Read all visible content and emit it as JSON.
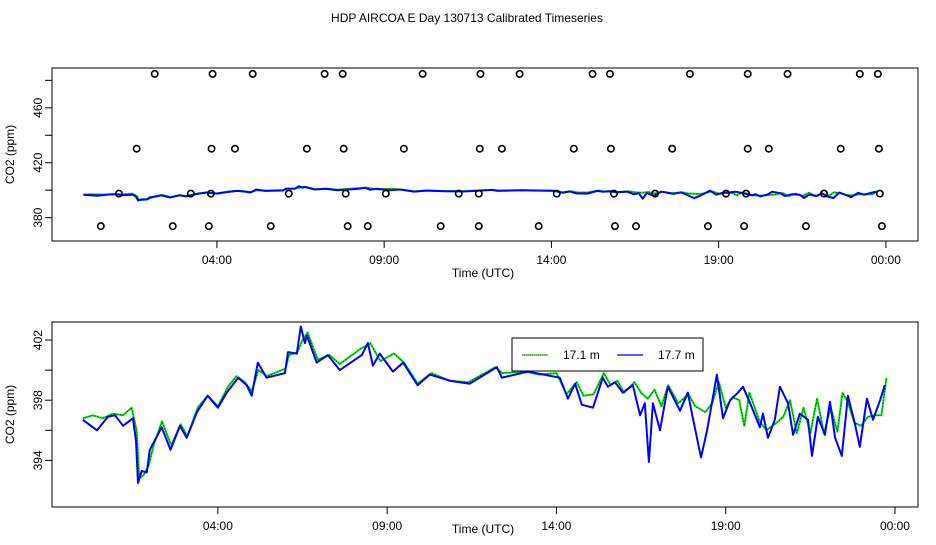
{
  "title": "HDP AIRCOA E  Day 130713  Calibrated Timeseries",
  "colors": {
    "green": "#00e000",
    "blue": "#0000ff",
    "axis": "#000000"
  },
  "chart_data": [
    {
      "type": "line",
      "panel": "top",
      "xlabel": "Time (UTC)",
      "ylabel": "CO2 (ppm)",
      "xlim": [
        -0.93,
        24.96
      ],
      "ylim": [
        363,
        489
      ],
      "xticks": [
        {
          "h": 4,
          "label": "04:00"
        },
        {
          "h": 9,
          "label": "09:00"
        },
        {
          "h": 14,
          "label": "14:00"
        },
        {
          "h": 19,
          "label": "19:00"
        },
        {
          "h": 24,
          "label": "00:00"
        }
      ],
      "yticks": [
        {
          "v": 380,
          "label": "380"
        },
        {
          "v": 400,
          "label": ""
        },
        {
          "v": 420,
          "label": "420"
        },
        {
          "v": 440,
          "label": ""
        },
        {
          "v": 460,
          "label": "460"
        },
        {
          "v": 480,
          "label": ""
        }
      ],
      "outliers": {
        "rows": [
          {
            "ppm": 484.7,
            "h": [
              2.14,
              3.87,
              5.07,
              7.22,
              7.76,
              10.15,
              11.88,
              13.05,
              15.23,
              15.75,
              18.14,
              19.87,
              21.06,
              23.22,
              23.76
            ]
          },
          {
            "ppm": 430.2,
            "h": [
              1.6,
              3.84,
              4.54,
              6.69,
              7.79,
              9.59,
              11.86,
              12.52,
              14.67,
              15.78,
              17.61,
              19.87,
              20.5,
              22.65,
              23.79
            ]
          },
          {
            "ppm": 397.5,
            "h": [
              1.07,
              3.22,
              3.82,
              6.15,
              7.85,
              9.05,
              11.23,
              11.83,
              14.16,
              15.87,
              17.1,
              19.22,
              19.82,
              22.15,
              23.82
            ]
          },
          {
            "ppm": 373.8,
            "h": [
              0.53,
              2.68,
              3.76,
              5.61,
              7.91,
              8.51,
              10.69,
              11.83,
              13.62,
              15.9,
              16.53,
              18.68,
              19.76,
              21.61,
              23.88
            ]
          }
        ]
      }
    },
    {
      "type": "line",
      "panel": "bottom",
      "xlabel": "Time (UTC)",
      "ylabel": "CO2 (ppm)",
      "xlim": [
        -0.9,
        24.68
      ],
      "ylim": [
        390.9,
        403.2
      ],
      "xticks": [
        {
          "h": 4,
          "label": "04:00"
        },
        {
          "h": 9,
          "label": "09:00"
        },
        {
          "h": 14,
          "label": "14:00"
        },
        {
          "h": 19,
          "label": "19:00"
        },
        {
          "h": 24,
          "label": "00:00"
        }
      ],
      "yticks": [
        {
          "v": 394,
          "label": "394"
        },
        {
          "v": 396,
          "label": ""
        },
        {
          "v": 398,
          "label": "398"
        },
        {
          "v": 400,
          "label": ""
        },
        {
          "v": 402,
          "label": "402"
        }
      ],
      "legend": {
        "position": "top-center",
        "entries": [
          {
            "label": "17.1 m",
            "series": 0
          },
          {
            "label": "17.7 m",
            "series": 1
          }
        ]
      }
    }
  ],
  "series": [
    {
      "name": "17.1 m",
      "color": "green",
      "h": [
        0.01,
        0.3,
        0.6,
        0.9,
        1.2,
        1.45,
        1.6,
        1.68,
        1.8,
        1.95,
        2.1,
        2.35,
        2.62,
        2.9,
        3.1,
        3.4,
        3.7,
        4.0,
        4.3,
        4.55,
        4.8,
        5.0,
        5.2,
        5.45,
        6.0,
        6.1,
        6.35,
        6.5,
        6.65,
        6.95,
        7.3,
        7.6,
        8.2,
        8.5,
        8.8,
        9.2,
        9.5,
        9.9,
        10.3,
        10.85,
        11.4,
        12.2,
        12.4,
        13.1,
        13.5,
        14.0,
        14.3,
        14.6,
        14.8,
        15.1,
        15.4,
        15.6,
        15.8,
        16.0,
        16.3,
        16.5,
        16.7,
        16.9,
        17.1,
        17.3,
        17.6,
        17.9,
        18.1,
        18.4,
        18.6,
        18.8,
        19.0,
        19.2,
        19.4,
        19.55,
        19.7,
        20.0,
        20.2,
        20.5,
        20.7,
        20.9,
        21.1,
        21.3,
        21.5,
        21.7,
        21.9,
        22.1,
        22.3,
        22.45,
        22.6,
        22.8,
        23.0,
        23.2,
        23.4,
        23.6,
        23.75
      ],
      "v": [
        396.8,
        397.0,
        396.8,
        397.1,
        397.0,
        397.5,
        396.0,
        392.8,
        393.0,
        393.6,
        395.0,
        396.6,
        395.0,
        396.4,
        395.6,
        397.5,
        398.3,
        397.6,
        398.9,
        399.6,
        399.2,
        398.6,
        400.0,
        399.6,
        400.1,
        401.0,
        401.2,
        402.0,
        402.5,
        400.7,
        401.0,
        400.4,
        401.4,
        401.8,
        400.6,
        401.1,
        400.5,
        399.1,
        399.8,
        399.3,
        399.2,
        400.2,
        399.8,
        399.9,
        399.7,
        399.8,
        398.4,
        399.2,
        398.3,
        398.4,
        399.8,
        399.0,
        399.3,
        398.5,
        399.2,
        398.5,
        398.1,
        398.7,
        397.6,
        399.0,
        397.8,
        398.4,
        397.6,
        397.2,
        397.8,
        399.2,
        397.5,
        398.2,
        398.0,
        396.3,
        398.5,
        396.6,
        396.0,
        396.5,
        396.9,
        398.0,
        395.8,
        397.5,
        395.8,
        398.1,
        395.8,
        397.5,
        395.9,
        398.5,
        397.9,
        396.5,
        396.3,
        396.9,
        397.0,
        397.0,
        399.5
      ]
    },
    {
      "name": "17.7 m",
      "color": "blue",
      "h": [
        0.01,
        0.43,
        0.75,
        0.96,
        1.2,
        1.49,
        1.58,
        1.64,
        1.75,
        1.9,
        1.99,
        2.34,
        2.6,
        2.88,
        3.08,
        3.38,
        3.7,
        4.0,
        4.26,
        4.6,
        4.85,
        5.0,
        5.18,
        5.44,
        5.98,
        6.07,
        6.33,
        6.45,
        6.57,
        6.63,
        6.92,
        7.25,
        7.6,
        8.25,
        8.43,
        8.58,
        8.78,
        9.17,
        9.47,
        9.9,
        10.26,
        10.85,
        11.44,
        12.24,
        12.39,
        13.16,
        14.1,
        14.34,
        14.55,
        14.75,
        15.08,
        15.37,
        15.52,
        15.73,
        15.96,
        16.26,
        16.47,
        16.61,
        16.73,
        16.85,
        17.06,
        17.29,
        17.65,
        17.88,
        18.03,
        18.27,
        18.45,
        18.74,
        18.92,
        19.13,
        19.36,
        19.51,
        19.72,
        20.01,
        20.1,
        20.25,
        20.45,
        20.6,
        20.84,
        20.99,
        21.19,
        21.43,
        21.55,
        21.72,
        21.93,
        22.08,
        22.23,
        22.43,
        22.61,
        22.81,
        22.96,
        23.17,
        23.35,
        23.56,
        23.7
      ],
      "v": [
        396.7,
        396.0,
        396.9,
        397.0,
        396.3,
        396.8,
        395.3,
        392.5,
        393.3,
        393.2,
        394.7,
        396.2,
        394.7,
        396.3,
        395.5,
        397.2,
        398.3,
        397.5,
        398.5,
        399.5,
        399.0,
        398.3,
        400.5,
        399.5,
        399.8,
        401.2,
        401.1,
        402.9,
        401.8,
        402.3,
        400.5,
        401.0,
        400.0,
        401.0,
        401.8,
        400.3,
        401.1,
        399.9,
        400.5,
        399.0,
        399.7,
        399.3,
        399.1,
        400.2,
        399.5,
        399.9,
        399.5,
        398.1,
        399.1,
        397.7,
        397.5,
        399.5,
        398.9,
        399.2,
        398.5,
        399.0,
        397.0,
        397.8,
        393.9,
        397.8,
        396.0,
        398.9,
        397.3,
        398.5,
        396.8,
        394.2,
        396.0,
        399.7,
        396.8,
        398.0,
        398.5,
        398.9,
        397.8,
        396.2,
        397.1,
        395.5,
        396.7,
        398.9,
        397.8,
        395.7,
        397.1,
        396.7,
        394.3,
        396.9,
        395.7,
        397.9,
        395.5,
        394.3,
        398.3,
        396.5,
        394.9,
        398.1,
        396.7,
        398.0,
        399.0
      ]
    }
  ]
}
